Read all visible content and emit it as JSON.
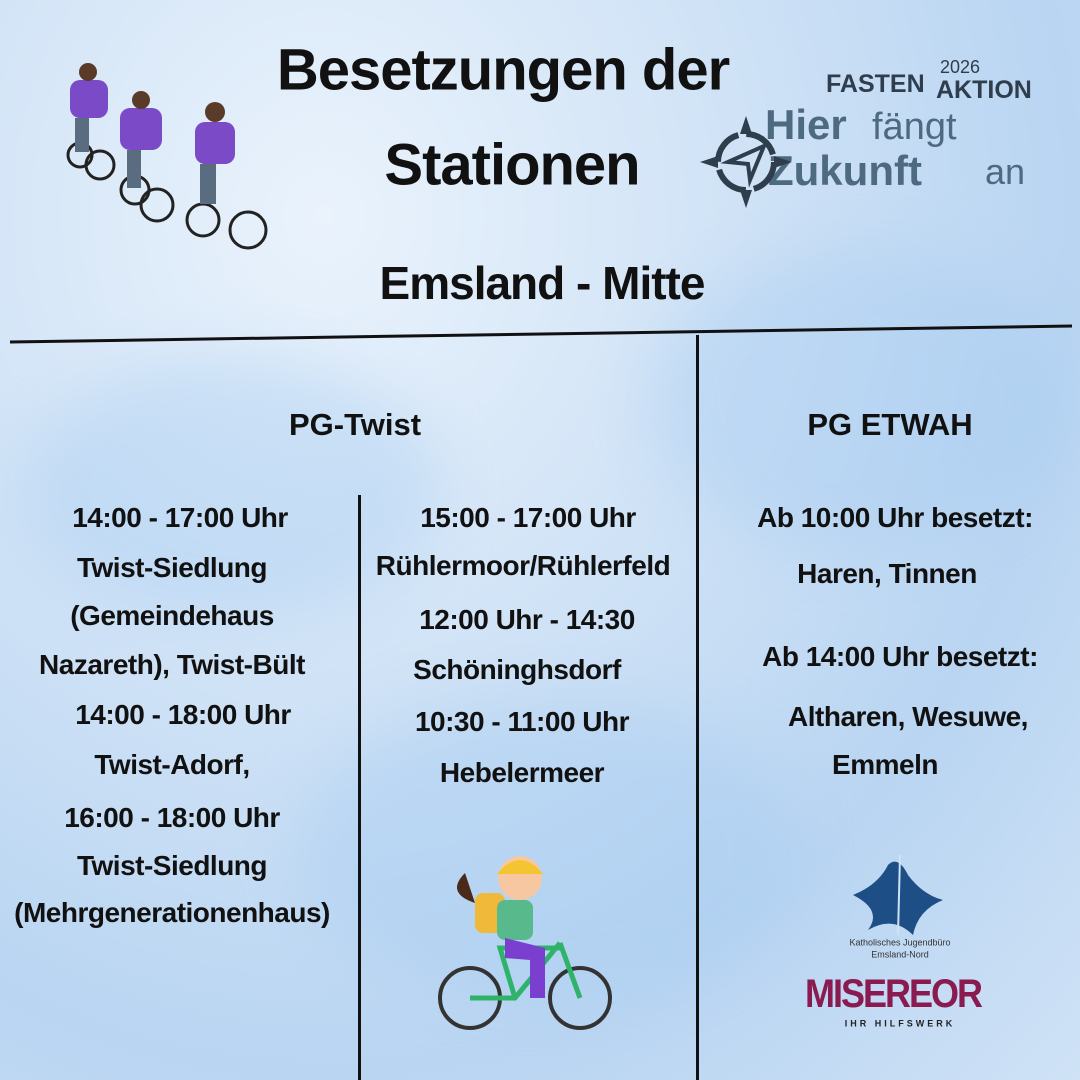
{
  "header": {
    "title_line1": "Besetzungen der",
    "title_line2": "Stationen",
    "region": "Emsland - Mitte"
  },
  "logo_fastenaktion": {
    "brand": "FASTEN",
    "brand2": "AKTION",
    "year": "2026",
    "slogan_1a": "Hier",
    "slogan_1b": "fängt",
    "slogan_2a": "Zukunft",
    "slogan_2b": "an"
  },
  "pg_twist": {
    "heading": "PG-Twist",
    "left_lines": [
      "14:00 - 17:00 Uhr",
      "Twist-Siedlung",
      "(Gemeindehaus",
      "Nazareth), Twist-Bült",
      "14:00 - 18:00 Uhr",
      "Twist-Adorf,",
      "16:00 - 18:00 Uhr",
      "Twist-Siedlung",
      "(Mehrgenerationenhaus)"
    ],
    "right_lines": [
      "15:00 - 17:00 Uhr",
      "Rühlermoor/Rühlerfeld",
      "12:00 Uhr - 14:30",
      "Schöninghsdorf",
      "10:30 - 11:00 Uhr",
      "Hebelermeer"
    ]
  },
  "pg_etwah": {
    "heading": "PG ETWAH",
    "lines": [
      "Ab 10:00 Uhr besetzt:",
      "Haren, Tinnen",
      "Ab 14:00 Uhr besetzt:",
      "Altharen, Wesuwe,",
      "Emmeln"
    ]
  },
  "logo_jugendbuero": {
    "line1": "Katholisches Jugendbüro",
    "line2": "Emsland-Nord",
    "color": "#1d4f86"
  },
  "logo_misereor": {
    "name": "MISEREOR",
    "tagline": "IHR HILFSWERK",
    "color": "#8a1a4f"
  }
}
